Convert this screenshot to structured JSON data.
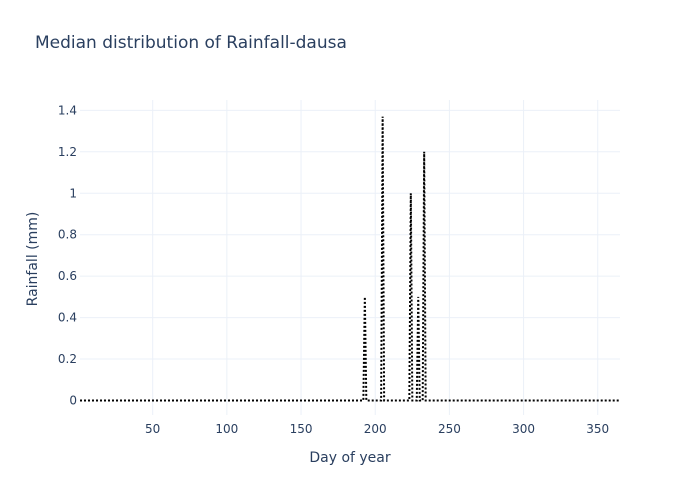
{
  "chart_data": {
    "type": "line",
    "title": "Median distribution of Rainfall-dausa",
    "xlabel": "Day of year",
    "ylabel": "Rainfall (mm)",
    "xlim": [
      1,
      365
    ],
    "ylim": [
      -0.07,
      1.45
    ],
    "x_ticks": [
      50,
      100,
      150,
      200,
      250,
      300,
      350
    ],
    "y_ticks": [
      0,
      0.2,
      0.4,
      0.6,
      0.8,
      1,
      1.2,
      1.4
    ],
    "y_tick_labels": [
      "0",
      "0.2",
      "0.4",
      "0.6",
      "0.8",
      "1",
      "1.2",
      "1.4"
    ],
    "grid": true,
    "line_style": "dotted",
    "line_color": "#000000",
    "series": [
      {
        "x": [
          1,
          192,
          193,
          194,
          204,
          205,
          206,
          223,
          224,
          225,
          228,
          229,
          230,
          232,
          233,
          234,
          365
        ],
        "values": [
          0,
          0,
          0.5,
          0,
          0,
          1.37,
          0,
          0,
          1.0,
          0,
          0,
          0.5,
          0,
          0,
          1.2,
          0,
          0
        ]
      }
    ]
  }
}
